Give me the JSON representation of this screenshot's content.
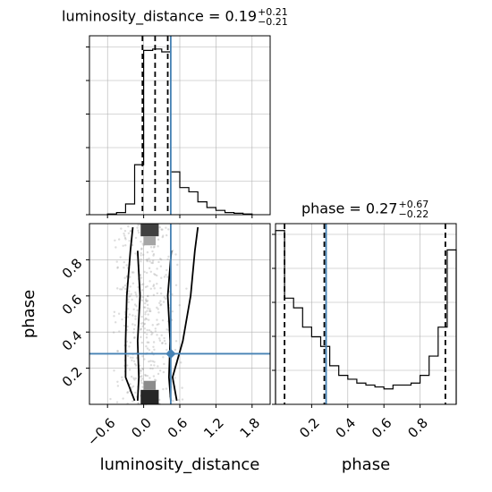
{
  "titles": {
    "dist": {
      "name": "luminosity_distance",
      "value": "0.19",
      "plus": "+0.21",
      "minus": "−0.21"
    },
    "phase": {
      "name": "phase",
      "value": "0.27",
      "plus": "+0.67",
      "minus": "−0.22"
    }
  },
  "chart_data": {
    "type": "corner",
    "parameters": [
      "luminosity_distance",
      "phase"
    ],
    "xlabels": [
      "luminosity_distance",
      "phase"
    ],
    "ylabel": "phase",
    "truth": {
      "luminosity_distance": 0.45,
      "phase": 0.28
    },
    "luminosity_distance": {
      "median": 0.19,
      "q16": -0.02,
      "q84": 0.4,
      "range": [
        -0.9,
        2.1
      ],
      "ticks": [
        -0.6,
        0.0,
        0.6,
        1.2,
        1.8
      ],
      "tick_labels": [
        "−0.6",
        "0.0",
        "0.6",
        "1.2",
        "1.8"
      ],
      "hist_edges": [
        -0.6,
        -0.45,
        -0.3,
        -0.15,
        0.0,
        0.15,
        0.3,
        0.45,
        0.6,
        0.75,
        0.9,
        1.05,
        1.2,
        1.35,
        1.5,
        1.65,
        1.8
      ],
      "hist_counts": [
        1,
        3,
        15,
        70,
        230,
        232,
        228,
        60,
        38,
        32,
        18,
        10,
        6,
        3,
        2,
        1
      ]
    },
    "phase": {
      "median": 0.27,
      "q16": 0.05,
      "q84": 0.94,
      "range": [
        0.0,
        1.0
      ],
      "ticks": [
        0.2,
        0.4,
        0.6,
        0.8
      ],
      "tick_labels": [
        "0.2",
        "0.4",
        "0.6",
        "0.8"
      ],
      "hist_edges": [
        0.0,
        0.05,
        0.1,
        0.15,
        0.2,
        0.25,
        0.3,
        0.35,
        0.4,
        0.45,
        0.5,
        0.55,
        0.6,
        0.65,
        0.7,
        0.75,
        0.8,
        0.85,
        0.9,
        0.95,
        1.0
      ],
      "hist_counts": [
        90,
        55,
        50,
        40,
        35,
        30,
        20,
        15,
        13,
        11,
        10,
        9,
        8,
        10,
        10,
        11,
        15,
        25,
        40,
        80
      ]
    },
    "joint_contours_phase_levels": [
      0.02,
      0.15,
      0.35,
      0.6,
      0.85,
      0.98
    ],
    "joint_contours": {
      "inner": {
        "left": [
          -0.1,
          -0.08,
          -0.1,
          -0.06,
          -0.1
        ],
        "right": [
          0.45,
          0.42,
          0.44,
          0.4,
          0.46
        ]
      },
      "outer": {
        "left": [
          -0.15,
          -0.3,
          -0.3,
          -0.28,
          -0.22,
          -0.18
        ],
        "right": [
          0.55,
          0.48,
          0.65,
          0.78,
          0.85,
          0.9
        ]
      }
    },
    "density_blocks": [
      {
        "x0": -0.05,
        "x1": 0.25,
        "y0": 0.0,
        "y1": 0.08,
        "shade": 0.85
      },
      {
        "x0": -0.05,
        "x1": 0.25,
        "y0": 0.93,
        "y1": 1.0,
        "shade": 0.75
      },
      {
        "x0": 0.0,
        "x1": 0.2,
        "y0": 0.08,
        "y1": 0.13,
        "shade": 0.45
      },
      {
        "x0": 0.0,
        "x1": 0.2,
        "y0": 0.88,
        "y1": 0.93,
        "shade": 0.35
      }
    ],
    "colors": {
      "truth": "#4682b4",
      "line": "#000000",
      "points": "#9a9a9a",
      "grid": "#b0b0b0"
    }
  }
}
